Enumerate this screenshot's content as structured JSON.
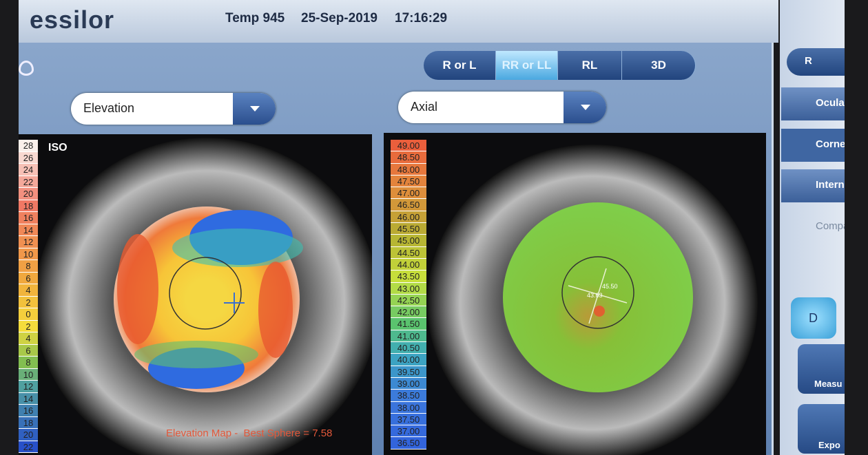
{
  "header": {
    "logo": "essilor",
    "device": "Temp 945",
    "date": "25-Sep-2019",
    "time": "17:16:29"
  },
  "view_buttons": [
    "R or L",
    "RR or LL",
    "RL",
    "3D"
  ],
  "left_map": {
    "dropdown": "Elevation",
    "label": "ISO",
    "scale": [
      "28",
      "26",
      "24",
      "22",
      "20",
      "18",
      "16",
      "14",
      "12",
      "10",
      "8",
      "6",
      "4",
      "2",
      "0",
      "2",
      "4",
      "6",
      "8",
      "10",
      "12",
      "14",
      "16",
      "18",
      "20",
      "22"
    ],
    "caption": "Elevation Map -  Best Sphere = 7.58"
  },
  "right_map": {
    "dropdown": "Axial",
    "scale": [
      "49.00",
      "48.50",
      "48.00",
      "47.50",
      "47.00",
      "46.50",
      "46.00",
      "45.50",
      "45.00",
      "44.50",
      "44.00",
      "43.50",
      "43.00",
      "42.50",
      "42.00",
      "41.50",
      "41.00",
      "40.50",
      "40.00",
      "39.50",
      "39.00",
      "38.50",
      "38.00",
      "37.50",
      "37.00",
      "36.50"
    ],
    "annotations": [
      "45.50",
      "43.63"
    ]
  },
  "sidebar": {
    "eye_button": "R",
    "tabs": [
      "Ocula",
      "Corne",
      "Intern",
      "Compa"
    ],
    "d_button": "D",
    "actions": [
      "Measu",
      "Expo"
    ]
  }
}
